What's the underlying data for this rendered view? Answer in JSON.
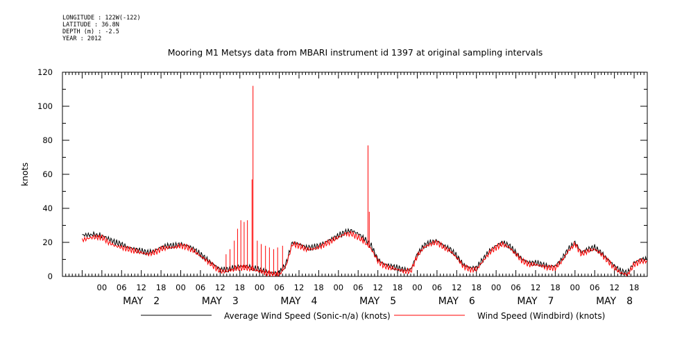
{
  "header": {
    "longitude": "LONGITUDE : 122W(-122)",
    "latitude": "LATITUDE : 36.8N",
    "depth": "DEPTH (m) : -2.5",
    "year": "YEAR : 2012"
  },
  "chart_data": {
    "type": "line",
    "title": "Mooring M1 Metsys data from MBARI instrument id 1397 at original sampling intervals",
    "ylabel": "knots",
    "xlabel": "",
    "ylim": [
      0,
      120
    ],
    "y_ticks": [
      0,
      20,
      40,
      60,
      80,
      100,
      120
    ],
    "xlim_hours": [
      -12,
      166
    ],
    "x_tick_hours": [
      0,
      6,
      12,
      18,
      24,
      30,
      36,
      42,
      48,
      54,
      60,
      66,
      72,
      78,
      84,
      90,
      96,
      102,
      108,
      114,
      120,
      126,
      132,
      138,
      144,
      150,
      156,
      162
    ],
    "x_tick_labels": [
      "00",
      "06",
      "12",
      "18",
      "00",
      "06",
      "12",
      "18",
      "00",
      "06",
      "12",
      "18",
      "00",
      "06",
      "12",
      "18",
      "00",
      "06",
      "12",
      "18",
      "00",
      "06",
      "12",
      "18",
      "00",
      "06",
      "12",
      "18"
    ],
    "day_labels": [
      {
        "hour": 12,
        "month": "MAY",
        "day": "2"
      },
      {
        "hour": 36,
        "month": "MAY",
        "day": "3"
      },
      {
        "hour": 60,
        "month": "MAY",
        "day": "4"
      },
      {
        "hour": 84,
        "month": "MAY",
        "day": "5"
      },
      {
        "hour": 108,
        "month": "MAY",
        "day": "6"
      },
      {
        "hour": 132,
        "month": "MAY",
        "day": "7"
      },
      {
        "hour": 156,
        "month": "MAY",
        "day": "8"
      }
    ],
    "series": [
      {
        "name": "Average Wind Speed (Sonic-n/a) (knots)",
        "color": "#000000",
        "x": [
          -6,
          -3,
          -1,
          0,
          2,
          4,
          6,
          8,
          10,
          12,
          14,
          16,
          18,
          20,
          22,
          24,
          26,
          28,
          30,
          32,
          34,
          36,
          38,
          40,
          42,
          44,
          46,
          48,
          50,
          52,
          54,
          56,
          58,
          60,
          62,
          64,
          66,
          68,
          70,
          72,
          74,
          76,
          78,
          80,
          82,
          84,
          86,
          88,
          90,
          92,
          94,
          96,
          98,
          100,
          102,
          104,
          106,
          108,
          110,
          112,
          114,
          116,
          118,
          120,
          122,
          124,
          126,
          128,
          130,
          132,
          134,
          136,
          138,
          140,
          142,
          144,
          146,
          148,
          150,
          152,
          154,
          156,
          158,
          160,
          162,
          164,
          166
        ],
        "y": [
          25,
          25,
          24,
          24,
          22,
          20,
          19,
          17,
          16,
          15,
          14,
          15,
          17,
          18,
          18,
          19,
          18,
          16,
          13,
          10,
          7,
          4,
          4,
          5,
          6,
          6,
          5,
          4,
          3,
          2,
          2,
          7,
          20,
          19,
          17,
          17,
          18,
          20,
          22,
          24,
          26,
          27,
          25,
          22,
          18,
          10,
          7,
          6,
          5,
          4,
          4,
          13,
          18,
          20,
          21,
          18,
          16,
          12,
          7,
          5,
          5,
          10,
          15,
          18,
          20,
          18,
          14,
          10,
          8,
          8,
          7,
          6,
          6,
          10,
          16,
          20,
          14,
          16,
          17,
          14,
          10,
          6,
          3,
          2,
          8,
          10,
          10
        ]
      },
      {
        "name": "Wind Speed (Windbird) (knots)",
        "color": "#ff0000",
        "x": [
          -6,
          -3,
          -1,
          0,
          2,
          4,
          6,
          8,
          10,
          12,
          14,
          16,
          18,
          20,
          22,
          24,
          26,
          28,
          30,
          32,
          34,
          36,
          38,
          40,
          42,
          44,
          46,
          48,
          50,
          52,
          54,
          56,
          58,
          60,
          62,
          64,
          66,
          68,
          70,
          72,
          74,
          76,
          78,
          80,
          82,
          84,
          86,
          88,
          90,
          92,
          94,
          96,
          98,
          100,
          102,
          104,
          106,
          108,
          110,
          112,
          114,
          116,
          118,
          120,
          122,
          124,
          126,
          128,
          130,
          132,
          134,
          136,
          138,
          140,
          142,
          144,
          146,
          148,
          150,
          152,
          154,
          156,
          158,
          160,
          162,
          164,
          166
        ],
        "y": [
          22,
          23,
          23,
          23,
          20,
          18,
          17,
          16,
          15,
          14,
          13,
          14,
          16,
          17,
          17,
          18,
          17,
          15,
          12,
          9,
          6,
          3,
          3,
          4,
          5,
          5,
          4,
          3,
          2,
          1,
          1,
          6,
          19,
          18,
          16,
          16,
          17,
          19,
          21,
          23,
          25,
          25,
          23,
          20,
          16,
          9,
          6,
          5,
          4,
          3,
          3,
          12,
          17,
          19,
          20,
          17,
          15,
          11,
          6,
          4,
          4,
          9,
          14,
          17,
          19,
          17,
          13,
          9,
          7,
          7,
          6,
          5,
          5,
          9,
          15,
          19,
          13,
          15,
          16,
          13,
          9,
          5,
          2,
          1,
          7,
          9,
          9
        ]
      }
    ],
    "spikes": [
      {
        "hour": 46,
        "value": 112
      },
      {
        "hour": 45.7,
        "value": 57
      },
      {
        "hour": 81,
        "value": 77
      },
      {
        "hour": 81.4,
        "value": 38
      },
      {
        "hour": 79.5,
        "value": 23
      },
      {
        "hour": 44.3,
        "value": 33
      },
      {
        "hour": 43.3,
        "value": 32
      },
      {
        "hour": 42.3,
        "value": 33
      },
      {
        "hour": 41.3,
        "value": 28
      },
      {
        "hour": 40.3,
        "value": 21
      },
      {
        "hour": 47.3,
        "value": 21
      },
      {
        "hour": 48.5,
        "value": 19
      },
      {
        "hour": 49.8,
        "value": 18
      },
      {
        "hour": 51,
        "value": 17
      },
      {
        "hour": 52.3,
        "value": 16
      },
      {
        "hour": 53.5,
        "value": 17
      },
      {
        "hour": 55,
        "value": 18
      },
      {
        "hour": 39,
        "value": 16
      },
      {
        "hour": 37.8,
        "value": 13
      }
    ]
  }
}
